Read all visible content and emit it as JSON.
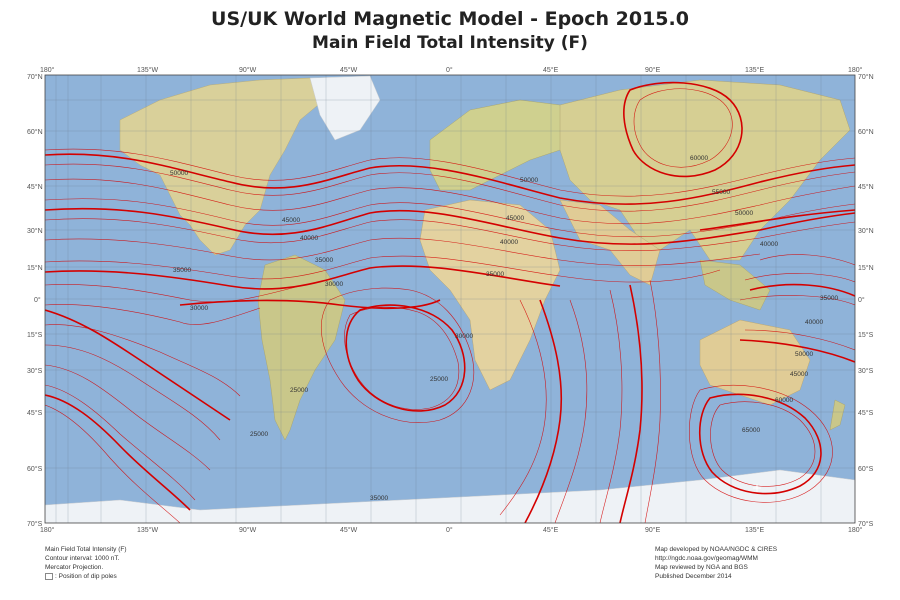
{
  "title": "US/UK World Magnetic Model - Epoch 2015.0",
  "subtitle": "Main Field Total Intensity (F)",
  "axes": {
    "lon_labels": [
      "180°",
      "135°W",
      "90°W",
      "45°W",
      "0°",
      "45°E",
      "90°E",
      "135°E",
      "180°"
    ],
    "lat_labels": [
      "70°N",
      "60°N",
      "45°N",
      "30°N",
      "15°N",
      "0°",
      "15°S",
      "30°S",
      "45°S",
      "60°S",
      "70°S"
    ]
  },
  "contour_labels": [
    "65000",
    "60000",
    "55000",
    "50000",
    "45000",
    "40000",
    "35000",
    "30000",
    "25000"
  ],
  "footer_left": {
    "line1": "Main Field Total Intensity (F)",
    "line2": "Contour interval: 1000 nT.",
    "line3": "Mercator Projection.",
    "line4": ": Position of dip poles"
  },
  "footer_right": {
    "line1": "Map developed by NOAA/NGDC & CIRES",
    "line2": "http://ngdc.noaa.gov/geomag/WMM",
    "line3": "Map reviewed by NGA and BGS",
    "line4": "Published December 2014"
  },
  "colors": {
    "ocean": "#8fb3d9",
    "land": "#d9d09a",
    "ice": "#eef2f6",
    "contour": "#d40000",
    "grid": "#6a7a8a"
  },
  "map_data": {
    "projection": "Mercator",
    "contour_interval_nT": 1000,
    "dip_pole_south": "south magnetic pole marker"
  }
}
